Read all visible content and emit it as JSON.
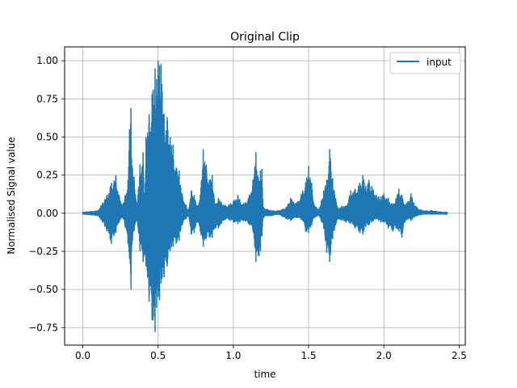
{
  "chart_data": {
    "type": "line",
    "title": "Original Clip",
    "xlabel": "time",
    "ylabel": "Normalised Signal value",
    "xlim": [
      -0.121,
      2.541
    ],
    "ylim": [
      -0.8652,
      1.0909
    ],
    "xticks": [
      0.0,
      0.5,
      1.0,
      1.5,
      2.0,
      2.5
    ],
    "xtick_labels": [
      "0.0",
      "0.5",
      "1.0",
      "1.5",
      "2.0",
      "2.5"
    ],
    "yticks": [
      -0.75,
      -0.5,
      -0.25,
      0.0,
      0.25,
      0.5,
      0.75,
      1.0
    ],
    "ytick_labels": [
      "−0.75",
      "−0.50",
      "−0.25",
      "0.00",
      "0.25",
      "0.50",
      "0.75",
      "1.00"
    ],
    "grid": true,
    "legend_position": "top-right",
    "series": [
      {
        "name": "input",
        "color": "#1f77b4",
        "style": "dense waveform (upper / lower envelope)",
        "x": [
          0.0,
          0.1,
          0.13,
          0.16,
          0.19,
          0.22,
          0.25,
          0.27,
          0.3,
          0.31,
          0.32,
          0.33,
          0.34,
          0.36,
          0.38,
          0.4,
          0.41,
          0.42,
          0.44,
          0.46,
          0.48,
          0.49,
          0.5,
          0.51,
          0.52,
          0.54,
          0.56,
          0.58,
          0.6,
          0.62,
          0.64,
          0.66,
          0.7,
          0.72,
          0.74,
          0.76,
          0.78,
          0.8,
          0.82,
          0.84,
          0.86,
          0.88,
          0.9,
          0.95,
          1.0,
          1.03,
          1.06,
          1.1,
          1.13,
          1.15,
          1.17,
          1.18,
          1.19,
          1.2,
          1.22,
          1.25,
          1.3,
          1.35,
          1.38,
          1.42,
          1.46,
          1.48,
          1.5,
          1.52,
          1.54,
          1.57,
          1.6,
          1.62,
          1.64,
          1.66,
          1.68,
          1.7,
          1.72,
          1.75,
          1.78,
          1.81,
          1.84,
          1.86,
          1.88,
          1.9,
          1.92,
          1.95,
          1.98,
          2.0,
          2.03,
          2.06,
          2.08,
          2.1,
          2.12,
          2.14,
          2.16,
          2.18,
          2.2,
          2.22,
          2.26,
          2.32,
          2.4,
          2.42
        ],
        "upper": [
          0.01,
          0.02,
          0.07,
          0.12,
          0.2,
          0.25,
          0.08,
          0.07,
          0.22,
          0.55,
          0.69,
          0.3,
          0.24,
          0.07,
          0.32,
          0.4,
          0.1,
          0.5,
          0.65,
          0.78,
          0.95,
          0.88,
          1.0,
          0.97,
          0.98,
          0.65,
          0.63,
          0.5,
          0.45,
          0.3,
          0.28,
          0.13,
          0.02,
          0.15,
          0.12,
          0.05,
          0.12,
          0.42,
          0.32,
          0.22,
          0.25,
          0.06,
          0.1,
          0.05,
          0.08,
          0.12,
          0.06,
          0.1,
          0.22,
          0.4,
          0.21,
          0.28,
          0.29,
          0.04,
          0.03,
          0.02,
          0.02,
          0.04,
          0.1,
          0.07,
          0.15,
          0.2,
          0.31,
          0.2,
          0.05,
          0.03,
          0.15,
          0.22,
          0.42,
          0.23,
          0.1,
          0.03,
          0.05,
          0.05,
          0.15,
          0.16,
          0.2,
          0.25,
          0.18,
          0.22,
          0.18,
          0.12,
          0.11,
          0.13,
          0.1,
          0.06,
          0.1,
          0.16,
          0.12,
          0.06,
          0.08,
          0.13,
          0.07,
          0.04,
          0.02,
          0.02,
          0.01,
          0.01
        ],
        "lower": [
          -0.01,
          -0.02,
          -0.06,
          -0.12,
          -0.2,
          -0.13,
          -0.04,
          -0.04,
          -0.2,
          -0.3,
          -0.5,
          -0.18,
          -0.12,
          -0.05,
          -0.25,
          -0.32,
          -0.28,
          -0.35,
          -0.58,
          -0.7,
          -0.78,
          -0.62,
          -0.55,
          -0.57,
          -0.46,
          -0.42,
          -0.35,
          -0.25,
          -0.22,
          -0.2,
          -0.18,
          -0.08,
          -0.02,
          -0.14,
          -0.13,
          -0.06,
          -0.12,
          -0.22,
          -0.17,
          -0.16,
          -0.16,
          -0.1,
          -0.1,
          -0.04,
          -0.06,
          -0.07,
          -0.05,
          -0.07,
          -0.12,
          -0.32,
          -0.28,
          -0.25,
          -0.15,
          -0.03,
          -0.02,
          -0.02,
          -0.01,
          -0.04,
          -0.05,
          -0.03,
          -0.05,
          -0.12,
          -0.13,
          -0.08,
          -0.03,
          -0.02,
          -0.1,
          -0.26,
          -0.32,
          -0.17,
          -0.08,
          -0.04,
          -0.05,
          -0.06,
          -0.07,
          -0.1,
          -0.13,
          -0.14,
          -0.09,
          -0.08,
          -0.06,
          -0.04,
          -0.06,
          -0.06,
          -0.1,
          -0.12,
          -0.1,
          -0.12,
          -0.16,
          -0.06,
          -0.04,
          -0.05,
          -0.03,
          -0.02,
          -0.01,
          -0.01,
          -0.01,
          -0.01
        ]
      }
    ]
  }
}
